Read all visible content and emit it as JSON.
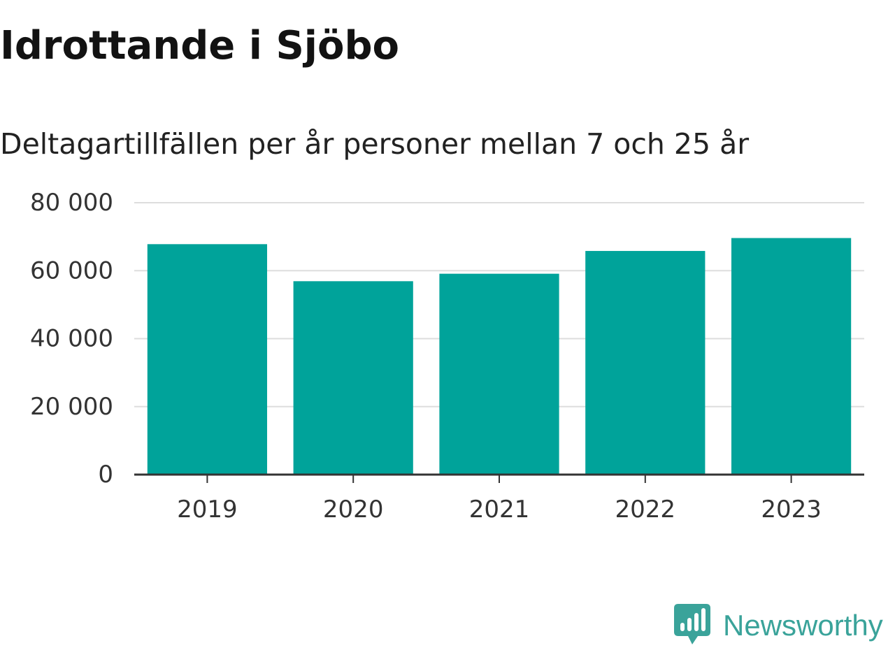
{
  "title": "Idrottande i Sjöbo",
  "subtitle": "Deltagartillfällen per år personer mellan 7 och 25 år",
  "brand": {
    "name": "Newsworthy",
    "icon": "newsworthy-logo-icon",
    "color": "#3aa39a"
  },
  "colors": {
    "bar": "#00a39a",
    "grid": "#dddddd",
    "axis": "#333333",
    "text": "#333333"
  },
  "chart_data": {
    "type": "bar",
    "title": "Idrottande i Sjöbo",
    "subtitle": "Deltagartillfällen per år personer mellan 7 och 25 år",
    "categories": [
      "2019",
      "2020",
      "2021",
      "2022",
      "2023"
    ],
    "values": [
      67800,
      56900,
      59100,
      65800,
      69600
    ],
    "ylim": [
      0,
      80000
    ],
    "yticks": [
      0,
      20000,
      40000,
      60000,
      80000
    ],
    "ytick_labels": [
      "0",
      "20 000",
      "40 000",
      "60 000",
      "80 000"
    ],
    "xlabel": "",
    "ylabel": "",
    "grid": true,
    "legend": "none"
  }
}
